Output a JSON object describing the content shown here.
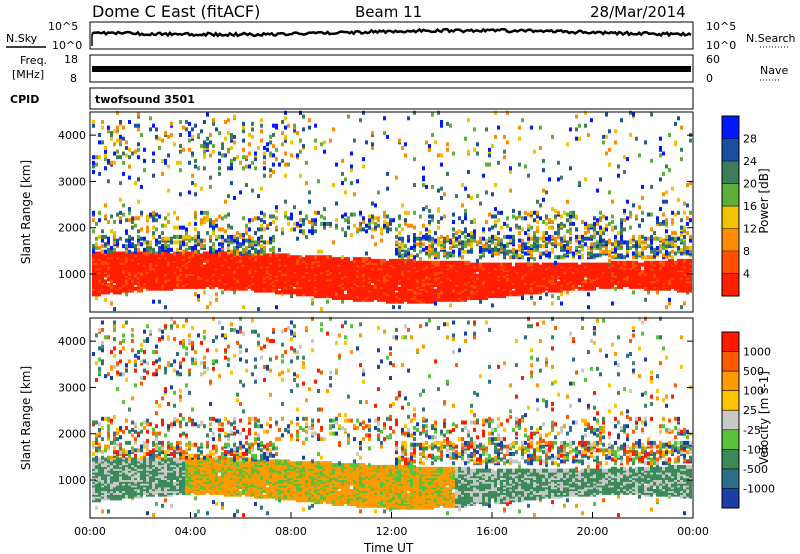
{
  "header": {
    "radar": "Dome C East (fitACF)",
    "beam": "Beam 11",
    "date": "28/Mar/2014"
  },
  "strips": {
    "nsky_label": "N.Sky",
    "nsky_ticks": [
      "10^5",
      "10^0"
    ],
    "nsearch_label": "N.Search",
    "nsearch_ticks": [
      "10^5",
      "10^0"
    ],
    "freq_label_1": "Freq.",
    "freq_label_2": "[MHz]",
    "freq_ticks": [
      "18",
      "8"
    ],
    "nave_label": "Nave",
    "nave_ticks": [
      "60",
      "0"
    ],
    "cpid_label": "CPID",
    "cpid_value": "twofsound 3501"
  },
  "chart_data": [
    {
      "type": "heatmap",
      "name": "power",
      "ylabel": "Slant Range [km]",
      "yticks": [
        "4000",
        "3000",
        "2000",
        "1000"
      ],
      "ylim": [
        180,
        4500
      ],
      "colorbar_label": "Power [dB]",
      "colorbar_ticks": [
        "28",
        "24",
        "20",
        "16",
        "12",
        "8",
        "4"
      ],
      "colorbar_colors": [
        "#0019ff",
        "#1a4ea0",
        "#3c7c5a",
        "#5fae3c",
        "#f2c100",
        "#ff8c00",
        "#ff5000",
        "#ff1e00"
      ]
    },
    {
      "type": "heatmap",
      "name": "velocity",
      "ylabel": "Slant Range [km]",
      "yticks": [
        "4000",
        "3000",
        "2000",
        "1000"
      ],
      "ylim": [
        180,
        4500
      ],
      "colorbar_label": "Velocity [m s-1]",
      "colorbar_ticks": [
        "1000",
        "500",
        "100",
        "25",
        "-25",
        "-100",
        "-500",
        "-1000"
      ],
      "colorbar_colors": [
        "#1c3ea8",
        "#2d6f8a",
        "#3c8a5a",
        "#57c23a",
        "#c8c8c8",
        "#ffc400",
        "#ff9a00",
        "#ff5a00",
        "#ff1a00"
      ],
      "xlabel": "Time UT",
      "xticks": [
        "00:00",
        "04:00",
        "08:00",
        "12:00",
        "16:00",
        "20:00",
        "00:00"
      ],
      "xlim": [
        "00:00",
        "24:00"
      ]
    }
  ]
}
